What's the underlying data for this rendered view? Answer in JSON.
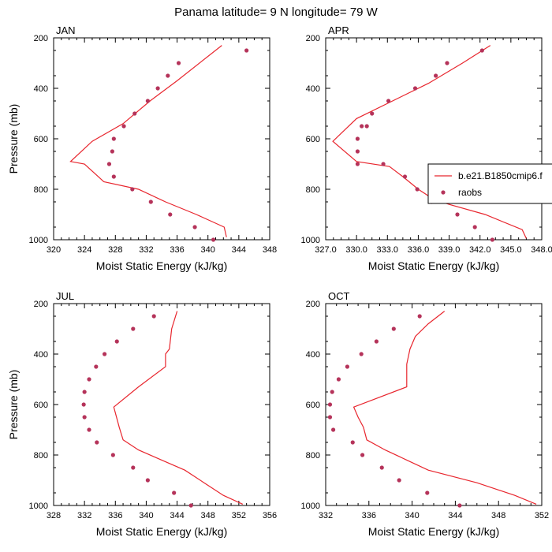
{
  "figure": {
    "title": "Panama  latitude= 9 N longitude= 79 W",
    "model_color": "#e8262e",
    "obs_color": "#b5335a"
  },
  "legend": {
    "model_label": "b.e21.B1850cmip6.f",
    "obs_label": "raobs"
  },
  "chart_data": [
    {
      "type": "line",
      "panel": "JAN",
      "xlabel": "Moist Static Energy (kJ/kg)",
      "ylabel": "Pressure (mb)",
      "xlim": [
        320,
        348
      ],
      "ylim": [
        1000,
        200
      ],
      "xticks": [
        320,
        324,
        328,
        332,
        336,
        340,
        344,
        348
      ],
      "xtick_labels": [
        "320",
        "324",
        "328",
        "332",
        "336",
        "340",
        "344",
        "348"
      ],
      "yticks": [
        200,
        400,
        600,
        800,
        1000
      ],
      "series": [
        {
          "name": "b.e21.B1850cmip6.f",
          "kind": "line",
          "x": [
            342.4,
            342.1,
            338.5,
            334.5,
            331.0,
            326.5,
            324.0,
            322.2,
            325.0,
            329.0,
            332.5,
            336.0,
            341.8
          ],
          "y": [
            990,
            950,
            900,
            850,
            800,
            770,
            700,
            690,
            610,
            540,
            450,
            370,
            230
          ]
        },
        {
          "name": "raobs",
          "kind": "points",
          "x": [
            340.7,
            338.3,
            335.1,
            332.6,
            330.2,
            327.8,
            327.2,
            327.6,
            327.8,
            329.1,
            330.5,
            332.2,
            333.5,
            334.8,
            336.2,
            345.0
          ],
          "y": [
            1000,
            950,
            900,
            850,
            800,
            750,
            700,
            650,
            600,
            550,
            500,
            450,
            400,
            350,
            300,
            250
          ]
        }
      ]
    },
    {
      "type": "line",
      "panel": "APR",
      "xlabel": "Moist Static Energy (kJ/kg)",
      "ylabel": "",
      "xlim": [
        327.0,
        348.0
      ],
      "ylim": [
        1000,
        200
      ],
      "xticks": [
        327.0,
        330.0,
        333.0,
        336.0,
        339.0,
        342.0,
        345.0,
        348.0
      ],
      "xtick_labels": [
        "327.0",
        "330.0",
        "333.0",
        "336.0",
        "339.0",
        "342.0",
        "345.0",
        "348.0"
      ],
      "yticks": [
        200,
        400,
        600,
        800,
        1000
      ],
      "series": [
        {
          "name": "b.e21.B1850cmip6.f",
          "kind": "line",
          "x": [
            346.5,
            346.1,
            342.5,
            339.0,
            337.5,
            336.0,
            334.5,
            333.2,
            330.0,
            327.7,
            330.0,
            333.5,
            337.0,
            340.3,
            343.0
          ],
          "y": [
            995,
            960,
            900,
            860,
            840,
            800,
            750,
            710,
            690,
            610,
            520,
            450,
            380,
            300,
            230
          ]
        },
        {
          "name": "raobs",
          "kind": "points",
          "x": [
            343.2,
            341.5,
            339.8,
            337.3,
            335.9,
            334.7,
            332.6,
            330.1,
            330.1,
            330.1,
            331.0,
            330.5,
            331.5,
            333.1,
            335.7,
            337.7,
            338.8,
            342.2
          ],
          "y": [
            1000,
            950,
            900,
            850,
            800,
            750,
            700,
            700,
            650,
            600,
            550,
            550,
            500,
            450,
            400,
            350,
            300,
            250
          ]
        }
      ]
    },
    {
      "type": "line",
      "panel": "JUL",
      "xlabel": "Moist Static Energy (kJ/kg)",
      "ylabel": "Pressure (mb)",
      "xlim": [
        328,
        356
      ],
      "ylim": [
        1000,
        200
      ],
      "xticks": [
        328,
        332,
        336,
        340,
        344,
        348,
        352,
        356
      ],
      "xtick_labels": [
        "328",
        "332",
        "336",
        "340",
        "344",
        "348",
        "352",
        "356"
      ],
      "yticks": [
        200,
        400,
        600,
        800,
        1000
      ],
      "series": [
        {
          "name": "b.e21.B1850cmip6.f",
          "kind": "line",
          "x": [
            352.5,
            350.0,
            347.5,
            345.0,
            342.0,
            339.0,
            337.0,
            336.5,
            335.8,
            339.0,
            342.5,
            342.5,
            343.0,
            343.3,
            344.0
          ],
          "y": [
            995,
            960,
            910,
            860,
            820,
            780,
            740,
            690,
            610,
            530,
            450,
            400,
            380,
            300,
            230
          ]
        },
        {
          "name": "raobs",
          "kind": "points",
          "x": [
            345.8,
            343.6,
            340.2,
            338.3,
            335.7,
            333.6,
            332.6,
            332.0,
            331.9,
            332.0,
            332.6,
            333.5,
            334.6,
            336.2,
            338.3,
            341.0
          ],
          "y": [
            1000,
            950,
            900,
            850,
            800,
            750,
            700,
            650,
            600,
            550,
            500,
            450,
            400,
            350,
            300,
            250
          ]
        }
      ]
    },
    {
      "type": "line",
      "panel": "OCT",
      "xlabel": "Moist Static Energy (kJ/kg)",
      "ylabel": "",
      "xlim": [
        332,
        352
      ],
      "ylim": [
        1000,
        200
      ],
      "xticks": [
        332,
        336,
        340,
        344,
        348,
        352
      ],
      "xtick_labels": [
        "332",
        "336",
        "340",
        "344",
        "348",
        "352"
      ],
      "yticks": [
        200,
        400,
        600,
        800,
        1000
      ],
      "series": [
        {
          "name": "b.e21.B1850cmip6.f",
          "kind": "line",
          "x": [
            351.5,
            349.5,
            346.0,
            341.5,
            339.5,
            337.5,
            335.8,
            335.5,
            335.0,
            334.6,
            339.5,
            339.5,
            339.8,
            340.3,
            341.5,
            343.0
          ],
          "y": [
            995,
            960,
            910,
            860,
            820,
            780,
            740,
            690,
            650,
            610,
            530,
            440,
            380,
            330,
            280,
            230
          ]
        },
        {
          "name": "raobs",
          "kind": "points",
          "x": [
            344.4,
            341.4,
            338.8,
            337.2,
            335.4,
            334.5,
            332.7,
            332.4,
            332.4,
            332.6,
            333.2,
            334.0,
            335.3,
            336.7,
            338.3,
            340.7
          ],
          "y": [
            1000,
            950,
            900,
            850,
            800,
            750,
            700,
            650,
            600,
            550,
            500,
            450,
            400,
            350,
            300,
            250
          ]
        }
      ]
    }
  ]
}
